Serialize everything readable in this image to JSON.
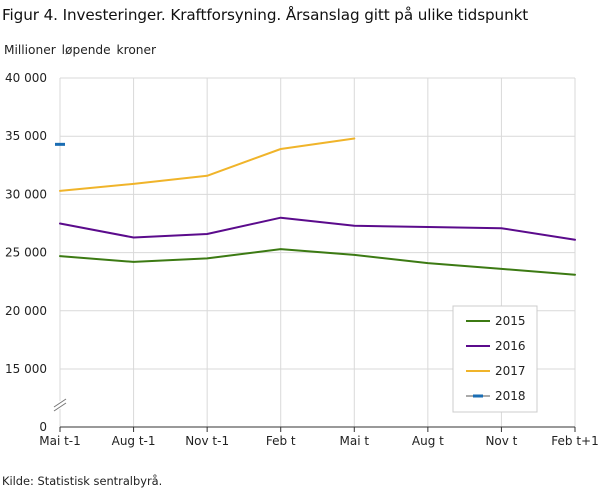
{
  "figure": {
    "title": "Figur 4. Investeringer. Kraftforsyning. Årsanslag gitt på ulike tidspunkt",
    "source": "Kilde: Statistisk sentralbyrå."
  },
  "chart_data": {
    "type": "line",
    "title": "Figur 4. Investeringer. Kraftforsyning. Årsanslag gitt på ulike tidspunkt",
    "ylabel": "Millioner  løpende  kroner",
    "xlabel": "",
    "categories": [
      "Mai t-1",
      "Aug t-1",
      "Nov t-1",
      "Feb t",
      "Mai t",
      "Aug t",
      "Nov t",
      "Feb t+1"
    ],
    "y_ticks": [
      0,
      15000,
      20000,
      25000,
      30000,
      35000,
      40000
    ],
    "y_tick_labels": [
      "0",
      "15 000",
      "20 000",
      "25 000",
      "30 000",
      "35 000",
      "40 000"
    ],
    "ylim": [
      10000,
      40000
    ],
    "y_axis_break": true,
    "grid": true,
    "legend_position": "bottom-right",
    "series": [
      {
        "name": "2015",
        "color": "#3c7a13",
        "values": [
          24700,
          24200,
          24500,
          25300,
          24800,
          24100,
          23600,
          23100
        ]
      },
      {
        "name": "2016",
        "color": "#5b0b8c",
        "values": [
          27500,
          26300,
          26600,
          28000,
          27300,
          27200,
          27100,
          26100
        ]
      },
      {
        "name": "2017",
        "color": "#f0b42a",
        "values": [
          30300,
          30900,
          31600,
          33900,
          34800,
          null,
          null,
          null
        ]
      },
      {
        "name": "2018",
        "color": "#1a6db3",
        "values": [
          34300,
          null,
          null,
          null,
          null,
          null,
          null,
          null
        ]
      }
    ]
  }
}
